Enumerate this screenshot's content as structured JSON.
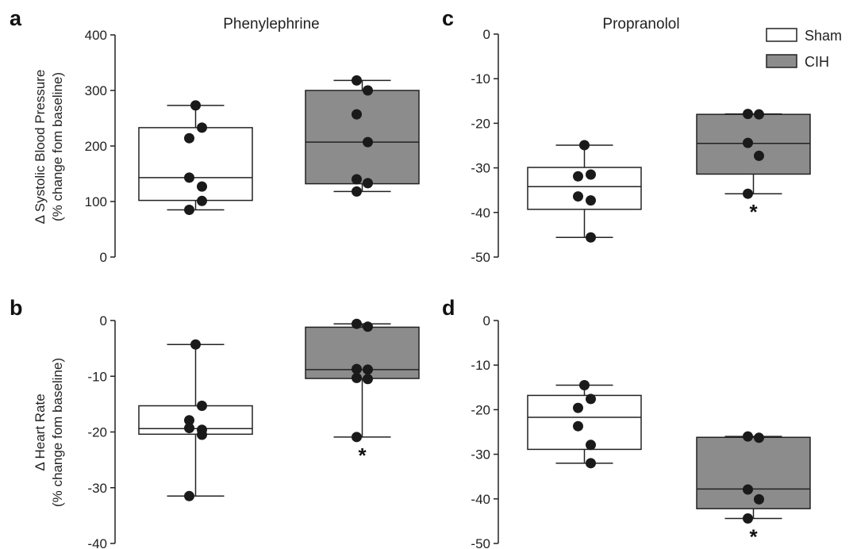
{
  "colors": {
    "sham": "#ffffff",
    "cih": "#8c8c8c",
    "ink": "#222222",
    "point": "#1a1a1a"
  },
  "legend": {
    "position": "top-right",
    "items": [
      {
        "label": "Sham",
        "color": "#ffffff"
      },
      {
        "label": "CIH",
        "color": "#8c8c8c"
      }
    ]
  },
  "chart_data": [
    {
      "panel": "a",
      "type": "box",
      "title": "Phenylephrine",
      "ylabel": [
        "Δ Systolic Blood Pressure",
        "(% change fom baseline)"
      ],
      "ylim": [
        0,
        400
      ],
      "yticks": [
        0,
        100,
        200,
        300,
        400
      ],
      "series": [
        {
          "name": "Sham",
          "min": 85,
          "q1": 102,
          "median": 143,
          "q3": 233,
          "max": 273,
          "points": [
            273,
            233,
            214,
            143,
            127,
            101,
            85
          ],
          "significant": false
        },
        {
          "name": "CIH",
          "min": 118,
          "q1": 132,
          "median": 207,
          "q3": 300,
          "max": 318,
          "points": [
            318,
            300,
            257,
            207,
            140,
            133,
            118
          ],
          "significant": false
        }
      ]
    },
    {
      "panel": "b",
      "type": "box",
      "title": "",
      "ylabel": [
        "Δ Heart Rate",
        "(% change fom baseline)"
      ],
      "ylim": [
        -40,
        0
      ],
      "yticks": [
        0,
        -10,
        -20,
        -30,
        -40
      ],
      "series": [
        {
          "name": "Sham",
          "min": -31.5,
          "q1": -20.4,
          "median": -19.4,
          "q3": -15.3,
          "max": -4.3,
          "points": [
            -4.3,
            -15.3,
            -17.9,
            -19.3,
            -19.6,
            -20.5,
            -31.5
          ],
          "significant": false
        },
        {
          "name": "CIH",
          "min": -20.9,
          "q1": -10.4,
          "median": -8.8,
          "q3": -1.2,
          "max": -0.6,
          "points": [
            -0.6,
            -1.1,
            -8.7,
            -8.8,
            -10.3,
            -10.5,
            -20.9
          ],
          "significant": true
        }
      ]
    },
    {
      "panel": "c",
      "type": "box",
      "title": "Propranolol",
      "ylabel": [],
      "ylim": [
        -50,
        0
      ],
      "yticks": [
        0,
        -10,
        -20,
        -30,
        -40,
        -50
      ],
      "series": [
        {
          "name": "Sham",
          "min": -45.6,
          "q1": -39.3,
          "median": -34.2,
          "q3": -29.9,
          "max": -24.9,
          "points": [
            -24.9,
            -31.5,
            -31.9,
            -36.4,
            -37.3,
            -45.6
          ],
          "significant": false
        },
        {
          "name": "CIH",
          "min": -35.8,
          "q1": -31.4,
          "median": -24.5,
          "q3": -18.0,
          "max": -17.9,
          "points": [
            -17.9,
            -18.0,
            -24.4,
            -27.3,
            -35.8
          ],
          "significant": true
        }
      ]
    },
    {
      "panel": "d",
      "type": "box",
      "title": "",
      "ylabel": [],
      "ylim": [
        -50,
        0
      ],
      "yticks": [
        0,
        -10,
        -20,
        -30,
        -40,
        -50
      ],
      "series": [
        {
          "name": "Sham",
          "min": -32.0,
          "q1": -28.9,
          "median": -21.7,
          "q3": -16.8,
          "max": -14.5,
          "points": [
            -14.5,
            -17.6,
            -19.6,
            -23.7,
            -27.9,
            -32.0
          ],
          "significant": false
        },
        {
          "name": "CIH",
          "min": -44.4,
          "q1": -42.2,
          "median": -37.8,
          "q3": -26.2,
          "max": -26.0,
          "points": [
            -26.0,
            -26.3,
            -37.9,
            -40.1,
            -44.4
          ],
          "significant": true
        }
      ]
    }
  ],
  "significance_marker": "*"
}
